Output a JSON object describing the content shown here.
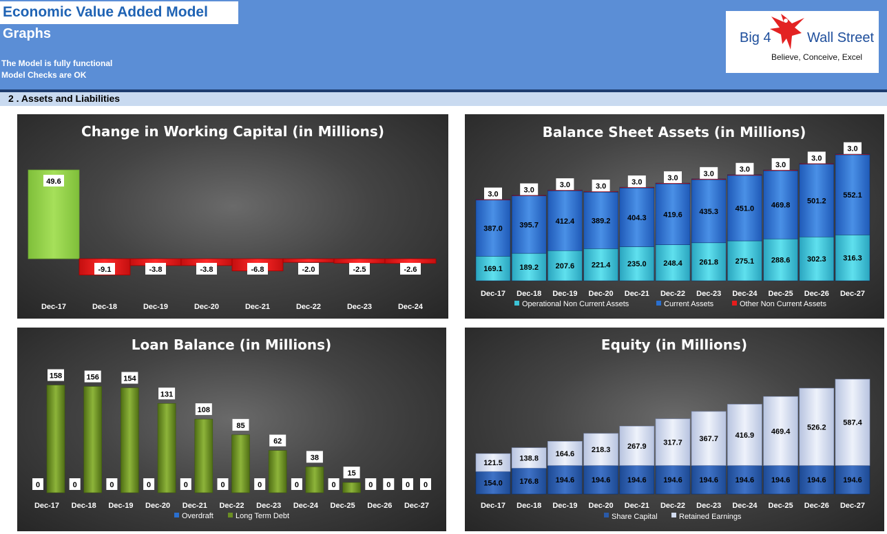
{
  "header": {
    "title": "Economic Value Added Model",
    "subtitle": "Graphs",
    "status_line1": "The Model is fully functional",
    "status_line2": "Model Checks are OK",
    "section": "2 .  Assets and Liabilities"
  },
  "logo": {
    "left_text": "Big 4",
    "right_text": "Wall Street",
    "tagline": "Believe, Conceive, Excel"
  },
  "colors": {
    "banner": "#5b8ed6",
    "positive_bar": "#92d050",
    "negative_bar": "#e81c1c",
    "assets_ops": "#3cc3d6",
    "assets_current": "#2a6fcf",
    "loan_ltd": "#6b8e23",
    "equity_share": "#2a5aa8",
    "equity_retained": "#d2dcf0"
  },
  "chart_data": [
    {
      "type": "bar",
      "title": "Change in Working Capital (in Millions)",
      "categories": [
        "Dec-17",
        "Dec-18",
        "Dec-19",
        "Dec-20",
        "Dec-21",
        "Dec-22",
        "Dec-23",
        "Dec-24"
      ],
      "values": [
        49.6,
        -9.1,
        -3.8,
        -3.8,
        -6.8,
        -2.0,
        -2.5,
        -2.6
      ],
      "labels": [
        "49.6",
        "-9.1",
        "-3.8",
        "-3.8",
        "-6.8",
        "-2.0",
        "-2.5",
        "-2.6"
      ]
    },
    {
      "type": "bar",
      "stacked": true,
      "title": "Balance Sheet Assets (in Millions)",
      "categories": [
        "Dec-17",
        "Dec-18",
        "Dec-19",
        "Dec-20",
        "Dec-21",
        "Dec-22",
        "Dec-23",
        "Dec-24",
        "Dec-25",
        "Dec-26",
        "Dec-27"
      ],
      "series": [
        {
          "name": "Operational Non Current Assets",
          "values": [
            169.1,
            189.2,
            207.6,
            221.4,
            235.0,
            248.4,
            261.8,
            275.1,
            288.6,
            302.3,
            316.3
          ],
          "labels": [
            "169.1",
            "189.2",
            "207.6",
            "221.4",
            "235.0",
            "248.4",
            "261.8",
            "275.1",
            "288.6",
            "302.3",
            "316.3"
          ]
        },
        {
          "name": "Current Assets",
          "values": [
            387.0,
            395.7,
            412.4,
            389.2,
            404.3,
            419.6,
            435.3,
            451.0,
            469.8,
            501.2,
            552.1
          ],
          "labels": [
            "387.0",
            "395.7",
            "412.4",
            "389.2",
            "404.3",
            "419.6",
            "435.3",
            "451.0",
            "469.8",
            "501.2",
            "552.1"
          ]
        },
        {
          "name": "Other Non Current Assets",
          "values": [
            3.0,
            3.0,
            3.0,
            3.0,
            3.0,
            3.0,
            3.0,
            3.0,
            3.0,
            3.0,
            3.0
          ],
          "labels": [
            "3.0",
            "3.0",
            "3.0",
            "3.0",
            "3.0",
            "3.0",
            "3.0",
            "3.0",
            "3.0",
            "3.0",
            "3.0"
          ]
        }
      ],
      "legend": "bottom"
    },
    {
      "type": "bar",
      "title": "Loan Balance (in Millions)",
      "categories": [
        "Dec-17",
        "Dec-18",
        "Dec-19",
        "Dec-20",
        "Dec-21",
        "Dec-22",
        "Dec-23",
        "Dec-24",
        "Dec-25",
        "Dec-26",
        "Dec-27"
      ],
      "series": [
        {
          "name": "Overdraft",
          "values": [
            0,
            0,
            0,
            0,
            0,
            0,
            0,
            0,
            0,
            0,
            0
          ],
          "labels": [
            "0",
            "0",
            "0",
            "0",
            "0",
            "0",
            "0",
            "0",
            "0",
            "0",
            "0"
          ]
        },
        {
          "name": "Long Term Debt",
          "values": [
            158,
            156,
            154,
            131,
            108,
            85,
            62,
            38,
            15,
            0,
            0
          ],
          "labels": [
            "158",
            "156",
            "154",
            "131",
            "108",
            "85",
            "62",
            "38",
            "15",
            "0",
            "0"
          ]
        }
      ],
      "legend": "bottom"
    },
    {
      "type": "bar",
      "stacked": true,
      "title": "Equity (in Millions)",
      "categories": [
        "Dec-17",
        "Dec-18",
        "Dec-19",
        "Dec-20",
        "Dec-21",
        "Dec-22",
        "Dec-23",
        "Dec-24",
        "Dec-25",
        "Dec-26",
        "Dec-27"
      ],
      "series": [
        {
          "name": "Share Capital",
          "values": [
            154.0,
            176.8,
            194.6,
            194.6,
            194.6,
            194.6,
            194.6,
            194.6,
            194.6,
            194.6,
            194.6
          ],
          "labels": [
            "154.0",
            "176.8",
            "194.6",
            "194.6",
            "194.6",
            "194.6",
            "194.6",
            "194.6",
            "194.6",
            "194.6",
            "194.6"
          ]
        },
        {
          "name": "Retained Earnings",
          "values": [
            121.5,
            138.8,
            164.6,
            218.3,
            267.9,
            317.7,
            367.7,
            416.9,
            469.4,
            526.2,
            587.4
          ],
          "labels": [
            "121.5",
            "138.8",
            "164.6",
            "218.3",
            "267.9",
            "317.7",
            "367.7",
            "416.9",
            "469.4",
            "526.2",
            "587.4"
          ]
        }
      ],
      "legend": "bottom"
    }
  ]
}
